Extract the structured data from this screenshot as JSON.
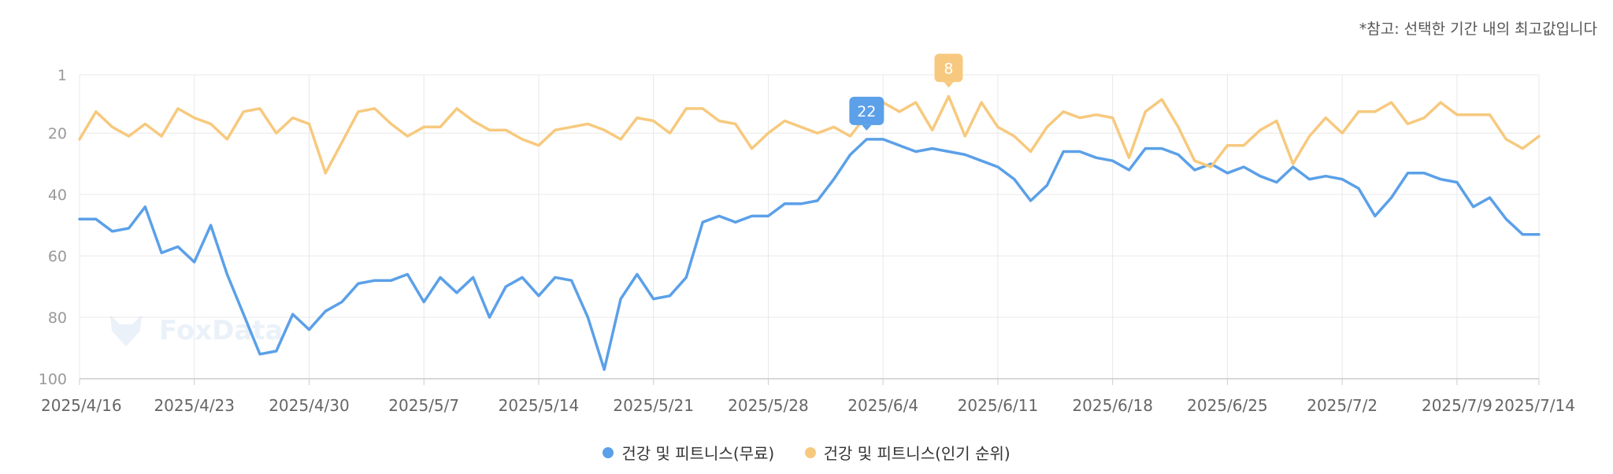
{
  "note": "*참고: 선택한 기간 내의 최고값입니다",
  "watermark": "FoxData",
  "colors": {
    "free": "#5ba0e8",
    "popular": "#f7c97e",
    "grid": "#e8e8e8",
    "axis": "#cccccc"
  },
  "legend": [
    {
      "label": "건강 및 피트니스(무료)",
      "color": "#5ba0e8"
    },
    {
      "label": "건강 및 피트니스(인기 순위)",
      "color": "#f7c97e"
    }
  ],
  "chart_data": {
    "type": "line",
    "y_reversed": true,
    "ylim": [
      1,
      100
    ],
    "yticks": [
      "1",
      "20",
      "40",
      "60",
      "80",
      "100"
    ],
    "ytick_values": [
      1,
      20,
      40,
      60,
      80,
      100
    ],
    "xlim": [
      "2025-04-16",
      "2025-07-14"
    ],
    "xtick_labels": [
      "2025/4/16",
      "2025/4/23",
      "2025/4/30",
      "2025/5/7",
      "2025/5/14",
      "2025/5/21",
      "2025/5/28",
      "2025/6/4",
      "2025/6/11",
      "2025/6/18",
      "2025/6/25",
      "2025/7/2",
      "2025/7/9",
      "2025/7/14"
    ],
    "xtick_dates": [
      "2025-04-16",
      "2025-04-23",
      "2025-04-30",
      "2025-05-07",
      "2025-05-14",
      "2025-05-21",
      "2025-05-28",
      "2025-06-04",
      "2025-06-11",
      "2025-06-18",
      "2025-06-25",
      "2025-07-02",
      "2025-07-09",
      "2025-07-14"
    ],
    "grid": true,
    "legend_position": "bottom",
    "start_date": "2025-04-16",
    "series": [
      {
        "name": "건강 및 피트니스(무료)",
        "color": "#5ba0e8",
        "values": [
          48,
          48,
          52,
          51,
          44,
          59,
          57,
          62,
          50,
          66,
          79,
          92,
          91,
          79,
          84,
          78,
          75,
          69,
          68,
          68,
          66,
          75,
          67,
          72,
          67,
          80,
          70,
          67,
          73,
          67,
          68,
          80,
          97,
          74,
          66,
          74,
          73,
          67,
          49,
          47,
          49,
          47,
          47,
          43,
          43,
          42,
          35,
          27,
          22,
          22,
          24,
          26,
          25,
          26,
          27,
          29,
          31,
          35,
          42,
          37,
          26,
          26,
          28,
          29,
          32,
          25,
          25,
          27,
          32,
          30,
          33,
          31,
          34,
          36,
          31,
          35,
          34,
          35,
          38,
          47,
          41,
          33,
          33,
          35,
          36,
          44,
          41,
          48,
          53,
          53
        ]
      },
      {
        "name": "건강 및 피트니스(인기 순위)",
        "color": "#f7c97e",
        "values": [
          22,
          13,
          18,
          21,
          17,
          21,
          12,
          15,
          17,
          22,
          13,
          12,
          20,
          15,
          17,
          33,
          23,
          13,
          12,
          17,
          21,
          18,
          18,
          12,
          16,
          19,
          19,
          22,
          24,
          19,
          18,
          17,
          19,
          22,
          15,
          16,
          20,
          12,
          12,
          16,
          17,
          25,
          20,
          16,
          18,
          20,
          18,
          21,
          14,
          10,
          13,
          10,
          19,
          8,
          21,
          10,
          18,
          21,
          26,
          18,
          13,
          15,
          14,
          15,
          28,
          13,
          9,
          18,
          29,
          31,
          24,
          24,
          19,
          16,
          30,
          21,
          15,
          20,
          13,
          13,
          10,
          17,
          15,
          10,
          14,
          14,
          14,
          22,
          25,
          21
        ]
      }
    ],
    "annotations": [
      {
        "series": 0,
        "index": 48,
        "label": "22"
      },
      {
        "series": 1,
        "index": 53,
        "label": "8"
      }
    ]
  }
}
